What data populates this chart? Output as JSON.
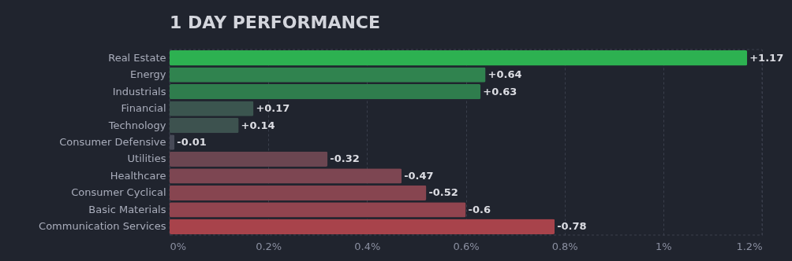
{
  "chart_data": {
    "type": "bar",
    "orientation": "horizontal",
    "title": "1 DAY PERFORMANCE",
    "categories": [
      "Real Estate",
      "Energy",
      "Industrials",
      "Financial",
      "Technology",
      "Consumer Defensive",
      "Utilities",
      "Healthcare",
      "Consumer Cyclical",
      "Basic Materials",
      "Communication Services"
    ],
    "values": [
      1.17,
      0.64,
      0.63,
      0.17,
      0.14,
      0.01,
      0.32,
      0.47,
      0.52,
      0.6,
      0.78
    ],
    "annotations": [
      {
        "text": "+1.17",
        "x": 1.17,
        "y": "Real Estate"
      },
      {
        "text": "+0.64",
        "x": 0.64,
        "y": "Energy"
      },
      {
        "text": "+0.63",
        "x": 0.63,
        "y": "Industrials"
      },
      {
        "text": "+0.17",
        "x": 0.17,
        "y": "Financial"
      },
      {
        "text": "+0.14",
        "x": 0.14,
        "y": "Technology"
      },
      {
        "text": "-0.01",
        "x": 0.01,
        "y": "Consumer Defensive"
      },
      {
        "text": "-0.32",
        "x": 0.32,
        "y": "Utilities"
      },
      {
        "text": "-0.47",
        "x": 0.47,
        "y": "Healthcare"
      },
      {
        "text": "-0.52",
        "x": 0.52,
        "y": "Consumer Cyclical"
      },
      {
        "text": "-0.6",
        "x": 0.6,
        "y": "Basic Materials"
      },
      {
        "text": "-0.78",
        "x": 0.78,
        "y": "Communication Services"
      }
    ],
    "colors": [
      "#2db151",
      "#30834f",
      "#2f7d4d",
      "#3b554f",
      "#3d524f",
      "#474a57",
      "#6b4651",
      "#7d4652",
      "#874550",
      "#91444f",
      "#a8434b"
    ],
    "xlim": [
      0,
      1.2
    ],
    "xticks": [
      {
        "value": 0,
        "label": "0%"
      },
      {
        "value": 0.2,
        "label": "0.2%"
      },
      {
        "value": 0.4,
        "label": "0.4%"
      },
      {
        "value": 0.6,
        "label": "0.6%"
      },
      {
        "value": 0.8,
        "label": "0.8%"
      },
      {
        "value": 1,
        "label": "1%"
      },
      {
        "value": 1.2,
        "label": "1.2%"
      }
    ],
    "grid": "x",
    "legend": false
  }
}
